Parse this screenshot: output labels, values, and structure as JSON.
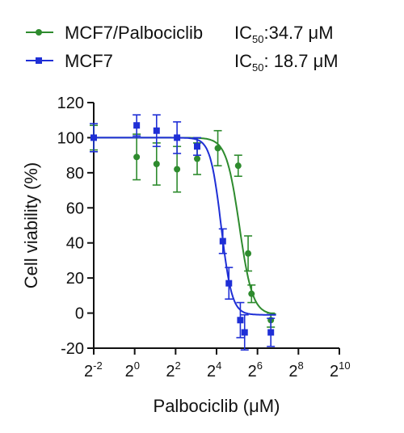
{
  "chart_data": {
    "type": "scatter",
    "xlabel_prefix": "Palbociclib (",
    "xlabel_unit": "μM",
    "xlabel_suffix": ")",
    "ylabel": "Cell viability (%)",
    "x_scale": "log2",
    "xlim": [
      0.25,
      1024
    ],
    "ylim": [
      -20,
      120
    ],
    "y_ticks": [
      -20,
      0,
      20,
      40,
      60,
      80,
      100,
      120
    ],
    "x_ticks": [
      {
        "base": "2",
        "exp": "-2",
        "value": 0.25
      },
      {
        "base": "2",
        "exp": "0",
        "value": 1
      },
      {
        "base": "2",
        "exp": "2",
        "value": 4
      },
      {
        "base": "2",
        "exp": "4",
        "value": 16
      },
      {
        "base": "2",
        "exp": "6",
        "value": 64
      },
      {
        "base": "2",
        "exp": "8",
        "value": 256
      },
      {
        "base": "2",
        "exp": "10",
        "value": 1024
      }
    ],
    "grid": false,
    "legend_position": "top",
    "series": [
      {
        "name": "MCF7/Palbociclib",
        "color": "#2e8b2e",
        "marker": "circle",
        "ic50_prefix": "IC",
        "ic50_sub": "50",
        "ic50_rest": ":34.7 μM",
        "ic50": 34.7,
        "top": 100,
        "bottom": -1,
        "hill": 4.5,
        "points": [
          {
            "x": 0.125,
            "y": 100,
            "err": 7
          },
          {
            "x": 1.07,
            "y": 89,
            "err": 13
          },
          {
            "x": 2.1,
            "y": 85,
            "err": 12
          },
          {
            "x": 4.2,
            "y": 82,
            "err": 13
          },
          {
            "x": 8.3,
            "y": 88,
            "err": 9
          },
          {
            "x": 16.7,
            "y": 94,
            "err": 10
          },
          {
            "x": 33.3,
            "y": 84,
            "err": 6
          },
          {
            "x": 46.6,
            "y": 34,
            "err": 10
          },
          {
            "x": 52.3,
            "y": 11,
            "err": 5
          },
          {
            "x": 100.6,
            "y": -4,
            "err": 4
          }
        ]
      },
      {
        "name": "MCF7",
        "color": "#1f2fd6",
        "marker": "square",
        "ic50_prefix": "IC",
        "ic50_sub": "50",
        "ic50_rest": ": 18.7 μM",
        "ic50": 18.7,
        "top": 100,
        "bottom": -1,
        "hill": 5.5,
        "points": [
          {
            "x": 0.125,
            "y": 100,
            "err": 8
          },
          {
            "x": 1.07,
            "y": 107,
            "err": 6
          },
          {
            "x": 2.1,
            "y": 104,
            "err": 9
          },
          {
            "x": 4.2,
            "y": 100,
            "err": 9
          },
          {
            "x": 8.3,
            "y": 95,
            "err": 5
          },
          {
            "x": 19.8,
            "y": 41,
            "err": 7
          },
          {
            "x": 24.3,
            "y": 17,
            "err": 9
          },
          {
            "x": 35.8,
            "y": -4,
            "err": 10
          },
          {
            "x": 41.4,
            "y": -11,
            "err": 10
          },
          {
            "x": 100.6,
            "y": -11,
            "err": 8
          }
        ]
      }
    ]
  }
}
